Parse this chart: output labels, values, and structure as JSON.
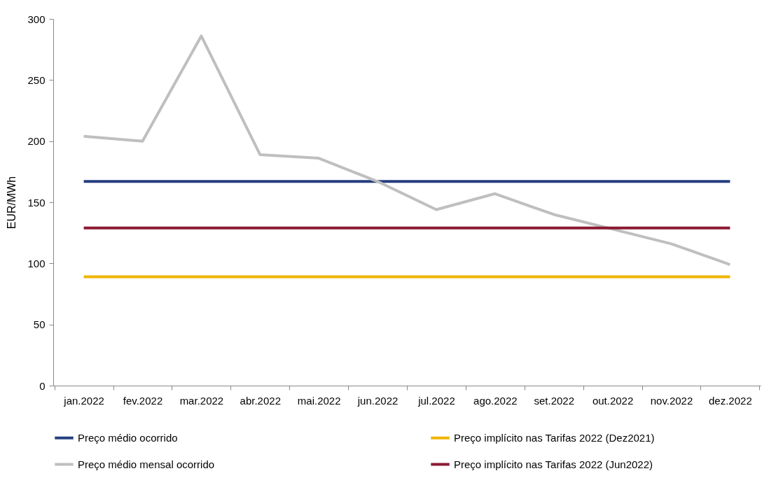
{
  "chart_data": {
    "type": "line",
    "ylabel": "EUR/MWh",
    "categories": [
      "jan.2022",
      "fev.2022",
      "mar.2022",
      "abr.2022",
      "mai.2022",
      "jun.2022",
      "jul.2022",
      "ago.2022",
      "set.2022",
      "out.2022",
      "nov.2022",
      "dez.2022"
    ],
    "ylim": [
      0,
      300
    ],
    "yticks": [
      0,
      50,
      100,
      150,
      200,
      250,
      300
    ],
    "grid": false,
    "legend": "bottom",
    "marker": "none",
    "line_style": "solid",
    "series": [
      {
        "name": "Preço médio ocorrido",
        "color": "#243f7f",
        "values": [
          167,
          167,
          167,
          167,
          167,
          167,
          167,
          167,
          167,
          167,
          167,
          167
        ]
      },
      {
        "name": "Preço implícito nas Tarifas 2022 (Dez2021)",
        "color": "#f0b400",
        "values": [
          89,
          89,
          89,
          89,
          89,
          89,
          89,
          89,
          89,
          89,
          89,
          89
        ]
      },
      {
        "name": "Preço médio mensal ocorrido",
        "color": "#bfbfbf",
        "values": [
          204,
          200,
          286,
          189,
          186,
          167,
          144,
          157,
          140,
          128,
          116,
          99
        ]
      },
      {
        "name": "Preço implícito nas Tarifas 2022 (Jun2022)",
        "color": "#8b1a32",
        "values": [
          129,
          129,
          129,
          129,
          129,
          129,
          129,
          129,
          129,
          129,
          129,
          129
        ]
      }
    ]
  }
}
